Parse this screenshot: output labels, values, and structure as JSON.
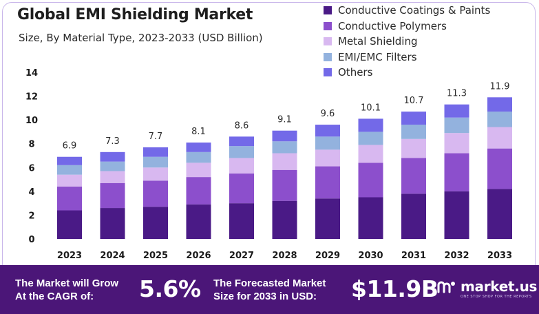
{
  "chart_data": {
    "type": "bar",
    "stacked": true,
    "title": "Global EMI Shielding Market",
    "subtitle": "Size, By Material Type, 2023-2033 (USD Billion)",
    "xlabel": "",
    "ylabel": "",
    "ylim": [
      0,
      14
    ],
    "yticks": [
      0,
      2,
      4,
      6,
      8,
      10,
      12,
      14
    ],
    "categories": [
      "2023",
      "2024",
      "2025",
      "2026",
      "2027",
      "2028",
      "2029",
      "2030",
      "2031",
      "2032",
      "2033"
    ],
    "totals": [
      "6.9",
      "7.3",
      "7.7",
      "8.1",
      "8.6",
      "9.1",
      "9.6",
      "10.1",
      "10.7",
      "11.3",
      "11.9"
    ],
    "series": [
      {
        "name": "Conductive Coatings & Paints",
        "color": "#4a1a86",
        "values": [
          2.4,
          2.6,
          2.7,
          2.9,
          3.0,
          3.2,
          3.4,
          3.5,
          3.8,
          4.0,
          4.2
        ]
      },
      {
        "name": "Conductive Polymers",
        "color": "#8c4fcc",
        "values": [
          2.0,
          2.1,
          2.2,
          2.3,
          2.5,
          2.6,
          2.7,
          2.9,
          3.0,
          3.2,
          3.4
        ]
      },
      {
        "name": "Metal Shielding",
        "color": "#d8b8f0",
        "values": [
          1.0,
          1.0,
          1.1,
          1.2,
          1.3,
          1.4,
          1.4,
          1.5,
          1.6,
          1.7,
          1.8
        ]
      },
      {
        "name": "EMI/EMC Filters",
        "color": "#93b2de",
        "values": [
          0.8,
          0.8,
          0.9,
          0.9,
          1.0,
          1.0,
          1.1,
          1.1,
          1.2,
          1.3,
          1.3
        ]
      },
      {
        "name": "Others",
        "color": "#7369e8",
        "values": [
          0.7,
          0.8,
          0.8,
          0.8,
          0.8,
          0.9,
          1.0,
          1.1,
          1.1,
          1.1,
          1.2
        ]
      }
    ],
    "legend_position": "top-right",
    "grid": false
  },
  "footer": {
    "cagr_label_line1": "The Market will Grow",
    "cagr_label_line2": "At the CAGR of:",
    "cagr_value": "5.6%",
    "forecast_label_line1": "The Forecasted Market",
    "forecast_label_line2": "Size for 2033 in USD:",
    "forecast_value": "$11.9B",
    "brand_name": "market.us",
    "brand_tagline": "ONE STOP SHOP FOR THE REPORTS",
    "background_color": "#4b1678"
  }
}
